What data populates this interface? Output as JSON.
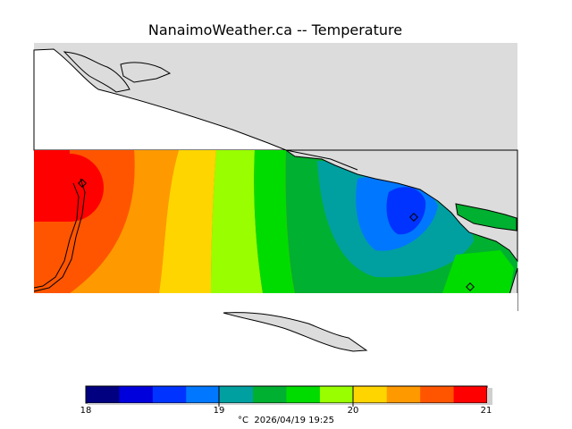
{
  "title": "NanaimoWeather.ca -- Temperature",
  "colorbar": {
    "ticks": [
      "18",
      "19",
      "20",
      "21"
    ],
    "caption_unit": "°C",
    "caption_date": "2026/04/19 19:25",
    "palette": [
      "#000080",
      "#0000dd",
      "#0033ff",
      "#0077ff",
      "#00a0a0",
      "#00b030",
      "#00dc00",
      "#99ff00",
      "#ffd500",
      "#ff9900",
      "#ff5500",
      "#ff0000"
    ]
  },
  "colors": {
    "land": "#dcdcdc",
    "water": "#ffffff",
    "coastline": "#000000"
  },
  "stations": [
    "station",
    "station",
    "station"
  ]
}
